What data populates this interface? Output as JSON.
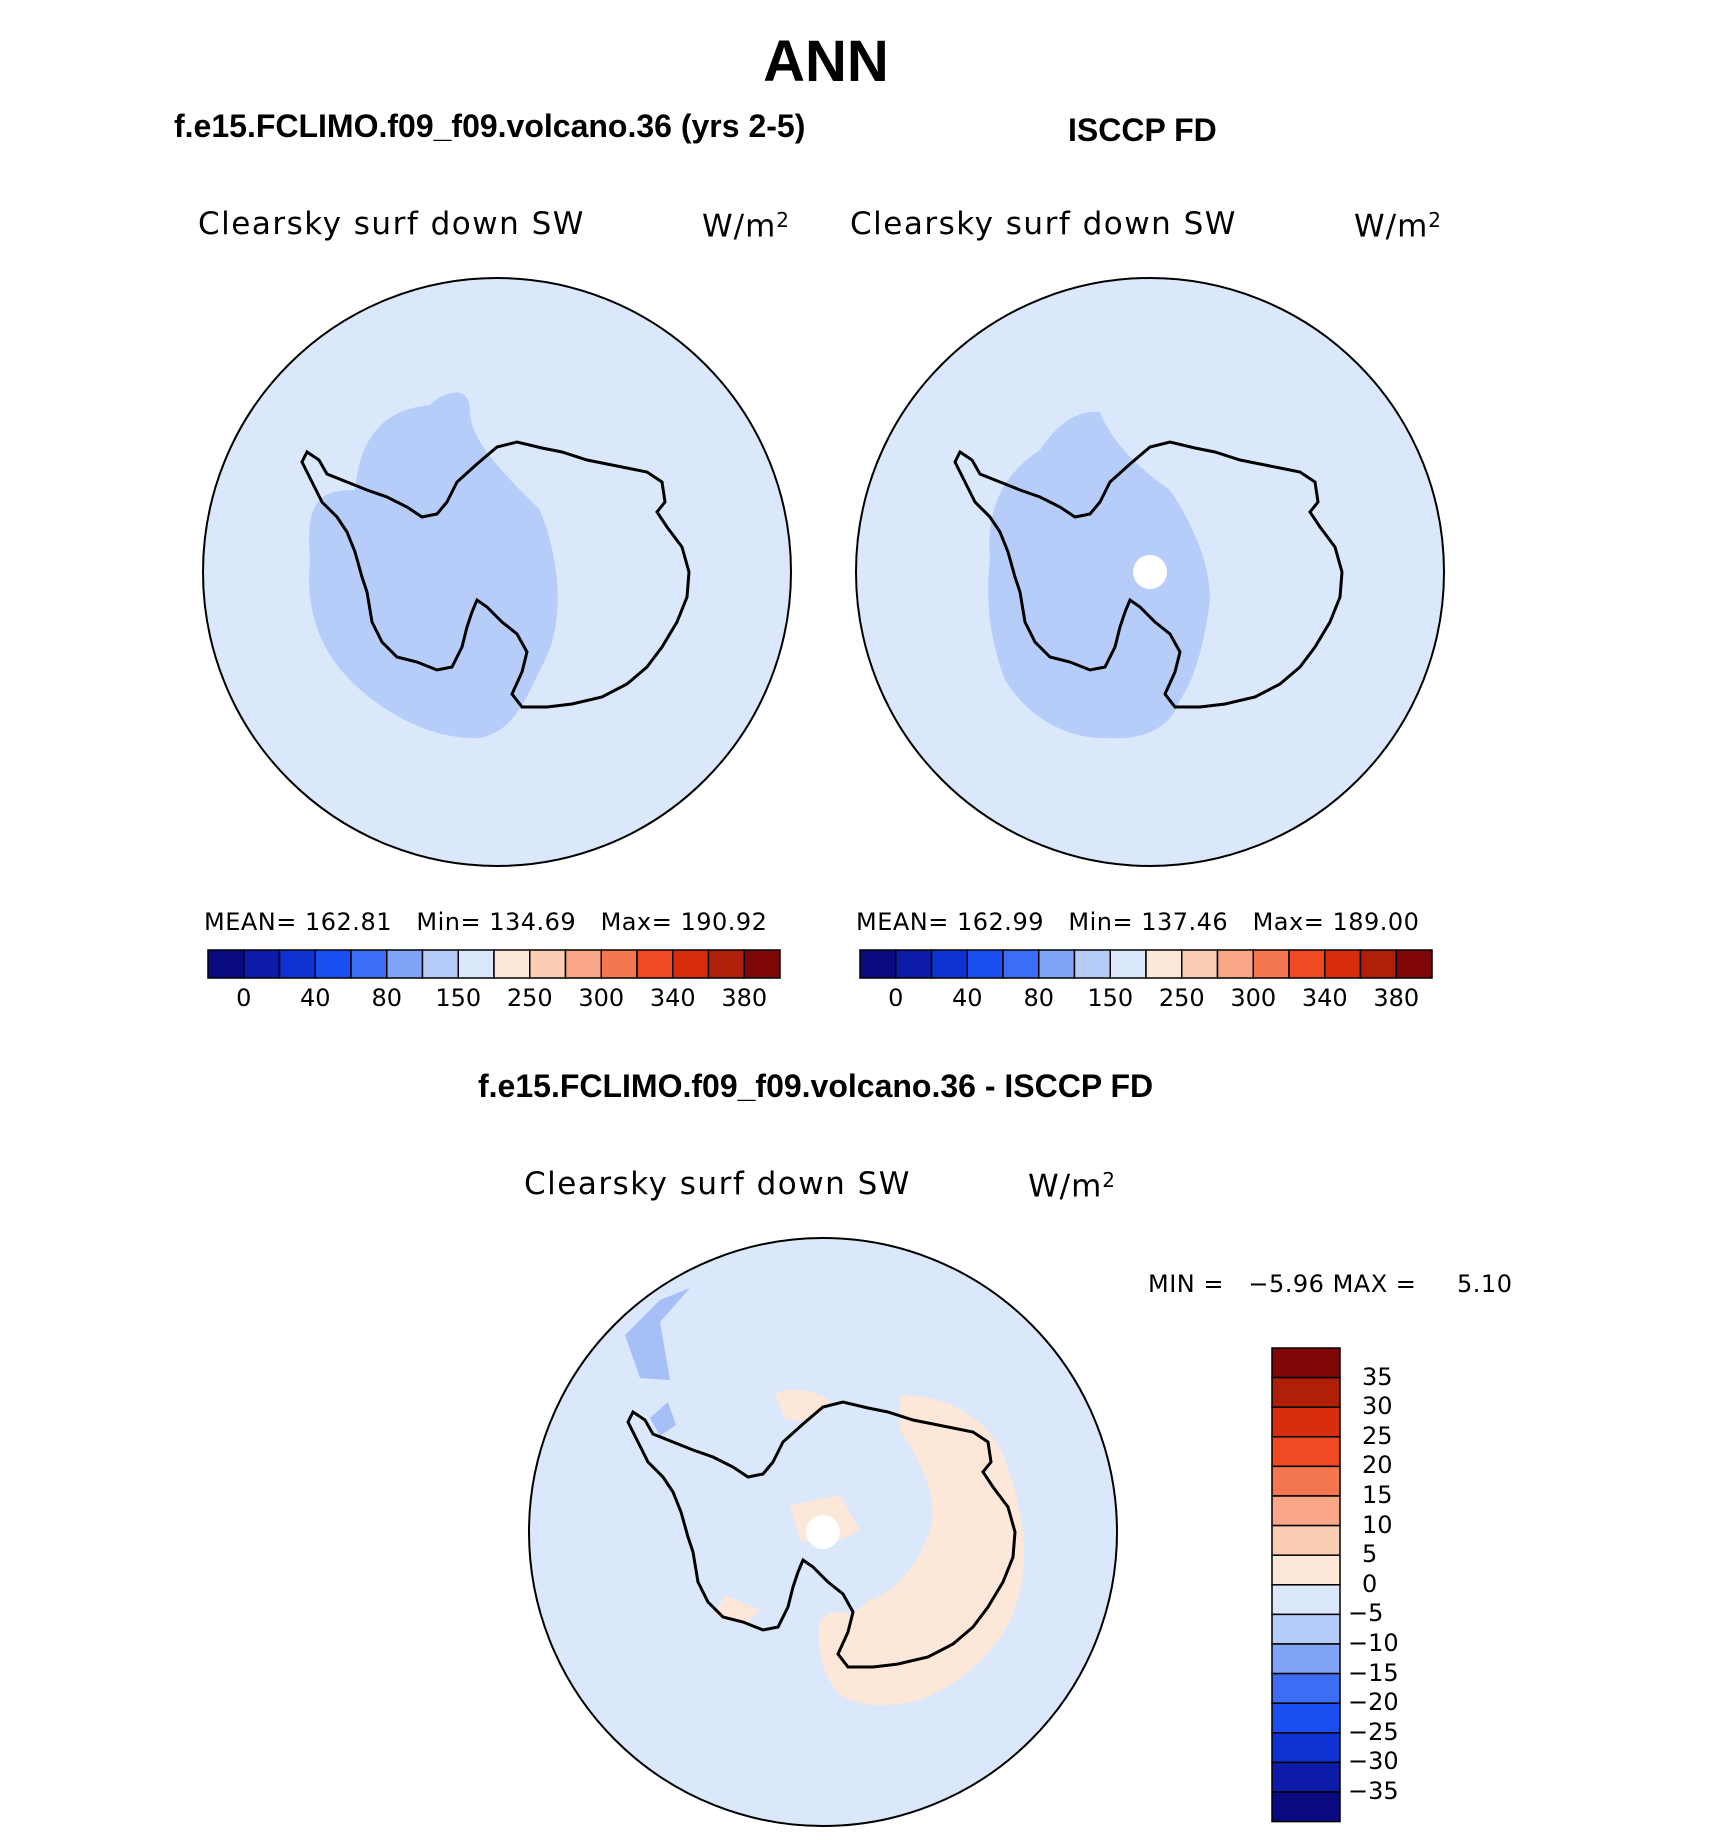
{
  "title": "ANN",
  "panels": [
    {
      "subtitle": "f.e15.FCLIMO.f09_f09.volcano.36 (yrs 2-5)",
      "variable": "Clearsky surf down SW",
      "unit": "W/m",
      "unit_sup": "2",
      "stats": {
        "mean_label": "MEAN=",
        "mean": "162.81",
        "min_label": "Min=",
        "min": "134.69",
        "max_label": "Max=",
        "max": "190.92"
      }
    },
    {
      "subtitle": "ISCCP FD",
      "variable": "Clearsky surf down SW",
      "unit": "W/m",
      "unit_sup": "2",
      "stats": {
        "mean_label": "MEAN=",
        "mean": "162.99",
        "min_label": "Min=",
        "min": "137.46",
        "max_label": "Max=",
        "max": "189.00"
      }
    },
    {
      "subtitle": "f.e15.FCLIMO.f09_f09.volcano.36 - ISCCP FD",
      "variable": "Clearsky surf down SW",
      "unit": "W/m",
      "unit_sup": "2",
      "stats": {
        "min_label": "MIN =",
        "min": "−5.96",
        "max_label": "MAX =",
        "max": "5.10"
      }
    }
  ],
  "colorbar_top": {
    "colors": [
      "#0a0a80",
      "#0c1ca8",
      "#0f33d3",
      "#1a4ff2",
      "#3d6cf5",
      "#7fa4f8",
      "#b6cdfa",
      "#dbe8fc",
      "#fde7d8",
      "#fbcdb4",
      "#f9a788",
      "#f5774f",
      "#ef4a22",
      "#d62e0c",
      "#b02008",
      "#7e0606"
    ],
    "labels": [
      "0",
      "40",
      "80",
      "150",
      "250",
      "300",
      "340",
      "380"
    ]
  },
  "colorbar_diff": {
    "colors": [
      "#7e0606",
      "#b02008",
      "#d62e0c",
      "#ef4a22",
      "#f5774f",
      "#f9a788",
      "#fbcdb4",
      "#fde7d8",
      "#dbe8fc",
      "#b6cdfa",
      "#7fa4f8",
      "#3d6cf5",
      "#1a4ff2",
      "#0f33d3",
      "#0c1ca8",
      "#0a0a80"
    ],
    "labels": [
      "35",
      "30",
      "25",
      "20",
      "15",
      "10",
      "5",
      "0",
      "−5",
      "−10",
      "−15",
      "−20",
      "−25",
      "−30",
      "−35"
    ]
  },
  "map_colors": {
    "ocean": "#dbe8fc",
    "low_band": "#b6cdfa",
    "dark_patch": "#a6c0f7",
    "positive": "#fde7d8",
    "pole_mask": "#ffffff",
    "outline": "#000000"
  }
}
